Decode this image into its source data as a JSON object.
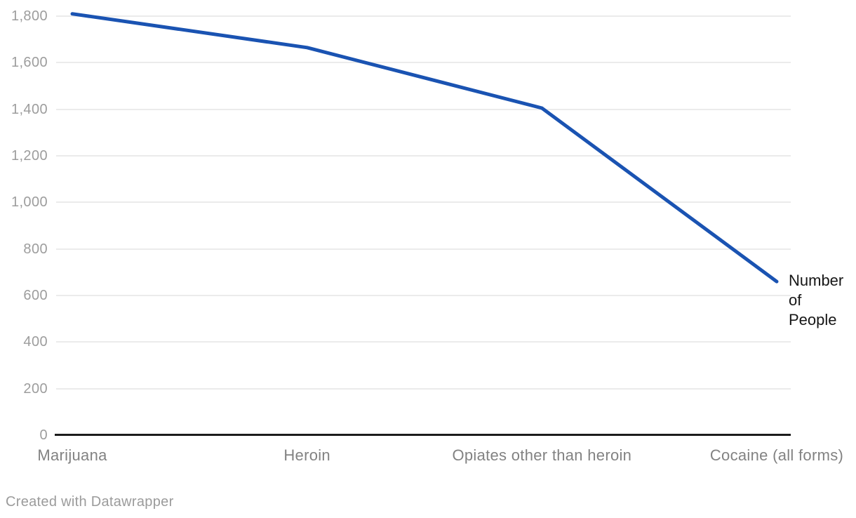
{
  "chart_data": {
    "type": "line",
    "categories": [
      "Marijuana",
      "Heroin",
      "Opiates other than heroin",
      "Cocaine (all forms)"
    ],
    "series": [
      {
        "name": "Number of People",
        "values": [
          1810,
          1665,
          1405,
          660
        ]
      }
    ],
    "line_label": "Number of People",
    "title": "",
    "xlabel": "",
    "ylabel": "",
    "ylim": [
      0,
      1800
    ],
    "y_tick_step": 200,
    "y_tick_labels": [
      "0",
      "200",
      "400",
      "600",
      "800",
      "1,000",
      "1,200",
      "1,400",
      "1,600",
      "1,800"
    ],
    "grid": "horizontal-only",
    "legend_position": "end-of-line",
    "line_color": "#1a53b2"
  },
  "colors": {
    "line": "#1a53b2",
    "gridline": "#ebebeb",
    "axis": "#1c1c1c",
    "y_tick_text": "#9d9d9d",
    "x_label_text": "#828282",
    "annotation_text": "#161616",
    "credit_text": "#9b9b9b",
    "background": "#ffffff"
  },
  "footer": {
    "credit": "Created with Datawrapper"
  }
}
